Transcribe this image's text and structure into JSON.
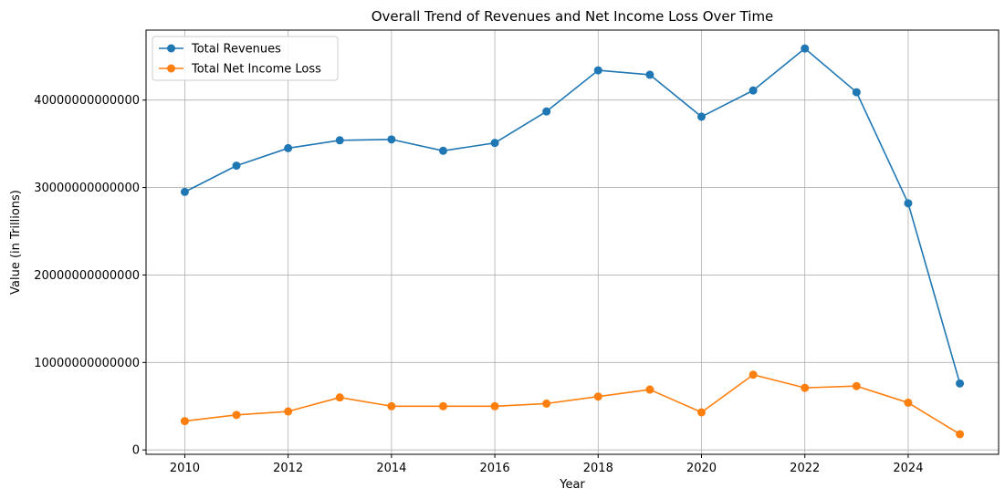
{
  "chart_data": {
    "type": "line",
    "title": "Overall Trend of Revenues and Net Income Loss Over Time",
    "xlabel": "Year",
    "ylabel": "Value (in Trillions)",
    "x": [
      2010,
      2011,
      2012,
      2013,
      2014,
      2015,
      2016,
      2017,
      2018,
      2019,
      2020,
      2021,
      2022,
      2023,
      2024,
      2025
    ],
    "xlim": [
      2009.25,
      2025.75
    ],
    "ylim": [
      -500000000000,
      48000000000000
    ],
    "xticks": [
      "2010",
      "2012",
      "2014",
      "2016",
      "2018",
      "2020",
      "2022",
      "2024"
    ],
    "yticks": [
      "0",
      "10000000000000",
      "20000000000000",
      "30000000000000",
      "40000000000000"
    ],
    "grid": true,
    "legend_position": "upper-left",
    "series": [
      {
        "name": "Total Revenues",
        "color": "#1f77b4",
        "values": [
          29500000000000,
          32500000000000,
          34500000000000,
          35400000000000,
          35500000000000,
          34200000000000,
          35100000000000,
          38700000000000,
          43400000000000,
          42900000000000,
          38100000000000,
          41100000000000,
          45900000000000,
          40900000000000,
          28200000000000,
          7600000000000
        ]
      },
      {
        "name": "Total Net Income Loss",
        "color": "#ff7f0e",
        "values": [
          3300000000000,
          4000000000000,
          4400000000000,
          6000000000000,
          5000000000000,
          5000000000000,
          5000000000000,
          5300000000000,
          6100000000000,
          6900000000000,
          4300000000000,
          8600000000000,
          7100000000000,
          7300000000000,
          5400000000000,
          1800000000000
        ]
      }
    ]
  }
}
